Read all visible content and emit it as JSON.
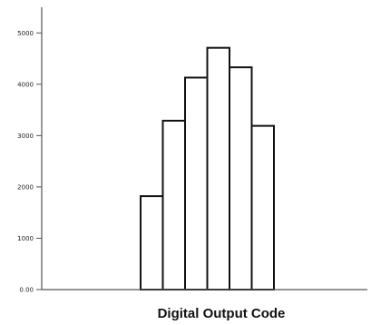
{
  "chart_data": {
    "type": "bar",
    "title": "",
    "xlabel": "Digital Output Code",
    "ylabel": "",
    "categories": [
      "",
      "",
      "",
      "",
      "",
      ""
    ],
    "values": [
      1820,
      3290,
      4130,
      4710,
      4330,
      3190
    ],
    "y_ticks": [
      {
        "value": 0,
        "label": "0.00"
      },
      {
        "value": 1000,
        "label": "1000"
      },
      {
        "value": 2000,
        "label": "2000"
      },
      {
        "value": 3000,
        "label": "3000"
      },
      {
        "value": 4000,
        "label": "4000"
      },
      {
        "value": 5000,
        "label": "5000"
      }
    ],
    "ylim": [
      0,
      5500
    ],
    "grid": false,
    "legend": "none",
    "bar_fill": "#ffffff",
    "bar_stroke": "#111111",
    "axis_color": "#555555"
  }
}
